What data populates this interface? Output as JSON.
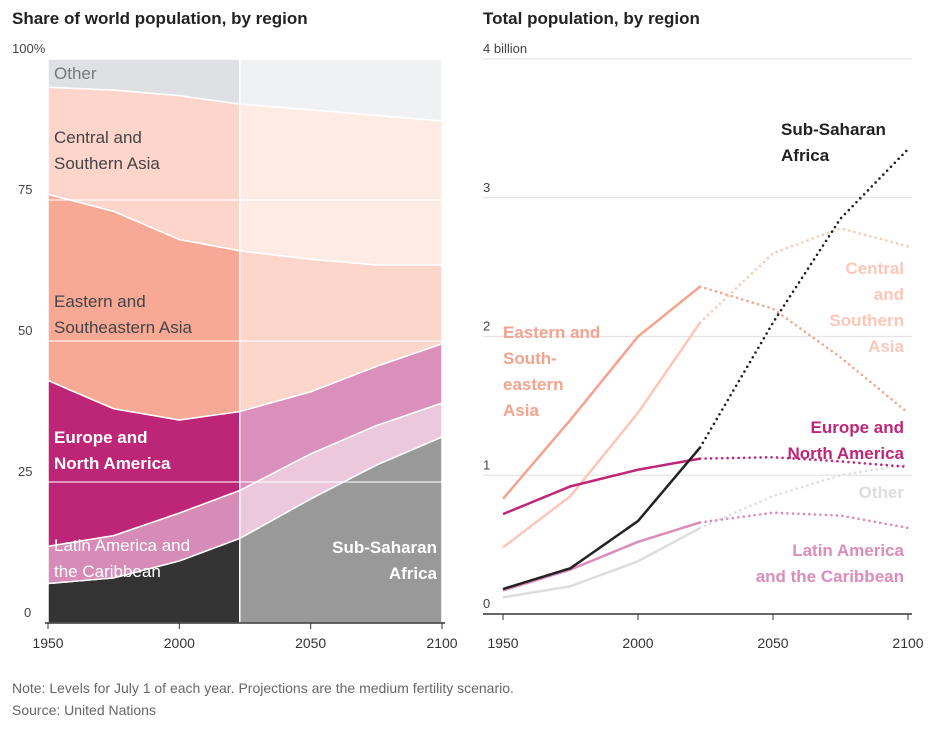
{
  "chart_data": [
    {
      "type": "area",
      "title": "Share of world population, by region",
      "x": [
        1950,
        1975,
        2000,
        2023,
        2050,
        2075,
        2100
      ],
      "projection_start": 2023,
      "ylim": [
        0,
        100
      ],
      "y_ticks": [
        {
          "v": 0,
          "label": "0"
        },
        {
          "v": 25,
          "label": "25"
        },
        {
          "v": 50,
          "label": "50"
        },
        {
          "v": 75,
          "label": "75"
        },
        {
          "v": 100,
          "label": "100%"
        }
      ],
      "x_ticks": [
        {
          "v": 1950,
          "label": "1950"
        },
        {
          "v": 2000,
          "label": "2000"
        },
        {
          "v": 2050,
          "label": "2050"
        },
        {
          "v": 2100,
          "label": "2100"
        }
      ],
      "series": [
        {
          "name": "Sub-Saharan Africa",
          "label_lines": [
            "Sub-Saharan",
            "Africa"
          ],
          "values": [
            7,
            8,
            11,
            15,
            22,
            28,
            33
          ],
          "color": "#333333",
          "proj_color": "#999999"
        },
        {
          "name": "Latin America and the Caribbean",
          "label_lines": [
            "Latin America and",
            "the Caribbean"
          ],
          "values": [
            6.6,
            7.5,
            8.5,
            8.5,
            8,
            7,
            6
          ],
          "color": "#d68cb7",
          "proj_color": "#ecc8dc"
        },
        {
          "name": "Europe and North America",
          "label_lines": [
            "Europe and",
            "North America"
          ],
          "values": [
            29.4,
            22.5,
            16.5,
            14,
            11,
            10.5,
            10.5
          ],
          "color": "#bd2677",
          "proj_color": "#db8fbb"
        },
        {
          "name": "Eastern and Southeastern Asia",
          "label_lines": [
            "Eastern and",
            "Southeastern Asia"
          ],
          "values": [
            33,
            35,
            32,
            28.5,
            23.5,
            18,
            14
          ],
          "color": "#f7a995",
          "proj_color": "#fcd6cb"
        },
        {
          "name": "Central and Southern Asia",
          "label_lines": [
            "Central and",
            "Southern Asia"
          ],
          "values": [
            19,
            21.5,
            25.5,
            26,
            26.5,
            26.5,
            25.5
          ],
          "color": "#fdd5cb",
          "proj_color": "#feebe4"
        },
        {
          "name": "Other",
          "label_lines": [
            "Other"
          ],
          "values": [
            5,
            5.5,
            6.5,
            8,
            9,
            10,
            11
          ],
          "color": "#dfe0e3",
          "proj_color": "#f0f1f2"
        }
      ]
    },
    {
      "type": "line",
      "title": "Total population, by region",
      "x": [
        1950,
        1975,
        2000,
        2023,
        2050,
        2075,
        2100
      ],
      "projection_start": 2023,
      "ylim": [
        0,
        4
      ],
      "y_ticks": [
        {
          "v": 0,
          "label": "0"
        },
        {
          "v": 1,
          "label": "1"
        },
        {
          "v": 2,
          "label": "2"
        },
        {
          "v": 3,
          "label": "3"
        },
        {
          "v": 4,
          "label": "4 billion"
        }
      ],
      "x_ticks": [
        {
          "v": 1950,
          "label": "1950"
        },
        {
          "v": 2000,
          "label": "2000"
        },
        {
          "v": 2050,
          "label": "2050"
        },
        {
          "v": 2100,
          "label": "2100"
        }
      ],
      "series": [
        {
          "name": "Other",
          "label_lines": [
            "Other"
          ],
          "values": [
            0.12,
            0.2,
            0.38,
            0.62,
            0.85,
            1.0,
            1.08
          ],
          "color": "#dddddd"
        },
        {
          "name": "Central and Southern Asia",
          "label_lines": [
            "Central",
            "and",
            "Southern",
            "Asia"
          ],
          "values": [
            0.48,
            0.85,
            1.45,
            2.1,
            2.6,
            2.78,
            2.65
          ],
          "color": "#fcc7b9"
        },
        {
          "name": "Latin America and the Caribbean",
          "label_lines": [
            "Latin America",
            "and the Caribbean"
          ],
          "values": [
            0.17,
            0.32,
            0.52,
            0.66,
            0.73,
            0.71,
            0.62
          ],
          "color": "#dc8cb8"
        },
        {
          "name": "Europe and North America",
          "label_lines": [
            "Europe and",
            "North America"
          ],
          "values": [
            0.72,
            0.92,
            1.04,
            1.12,
            1.13,
            1.1,
            1.06
          ],
          "color": "#be2677"
        },
        {
          "name": "Eastern and Southeastern Asia",
          "label_lines": [
            "Eastern and",
            "South-",
            "eastern",
            "Asia"
          ],
          "values": [
            0.83,
            1.4,
            2.0,
            2.36,
            2.2,
            1.85,
            1.45
          ],
          "color": "#f4a38e"
        },
        {
          "name": "Sub-Saharan Africa",
          "label_lines": [
            "Sub-Saharan",
            "Africa"
          ],
          "values": [
            0.18,
            0.33,
            0.67,
            1.2,
            2.1,
            2.85,
            3.35
          ],
          "color": "#222222"
        }
      ]
    }
  ],
  "note": "Note: Levels for July 1 of each year. Projections are the medium fertility scenario.",
  "source": "Source: United Nations"
}
